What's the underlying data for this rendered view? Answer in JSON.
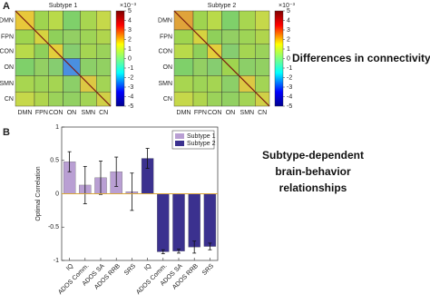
{
  "panel_a": {
    "label": "A",
    "maps": [
      {
        "title": "Subtype 1"
      },
      {
        "title": "Subtype 2"
      }
    ],
    "networks": [
      "DMN",
      "FPN",
      "CON",
      "ON",
      "SMN",
      "CN"
    ],
    "colorbar": {
      "lim": [
        -5,
        5
      ],
      "ticks": [
        5,
        4,
        3,
        2,
        1,
        0,
        -1,
        -2,
        -3,
        -4,
        -5
      ],
      "scale_label": "×10⁻³"
    },
    "caption": "Differences in connectivity"
  },
  "panel_b": {
    "label": "B",
    "caption": [
      "Subtype-dependent",
      "brain-behavior",
      "relationships"
    ]
  },
  "chart_data": {
    "type": "bar",
    "ylabel": "Optimal Correlation",
    "categories": [
      "IQ",
      "ADOS Comm.",
      "ADOS SA",
      "ADOS RRB",
      "SRS",
      "IQ",
      "ADOS Comm.",
      "ADOS SA",
      "ADOS RRB",
      "SRS"
    ],
    "series": [
      {
        "name": "Subtype 1",
        "color": "#b99fd3",
        "values": [
          0.48,
          0.13,
          0.24,
          0.33,
          0.03,
          null,
          null,
          null,
          null,
          null
        ],
        "errors": [
          0.15,
          0.28,
          0.25,
          0.22,
          0.28,
          null,
          null,
          null,
          null,
          null
        ]
      },
      {
        "name": "Subtype 2",
        "color": "#3b318f",
        "values": [
          null,
          null,
          null,
          null,
          null,
          0.53,
          -0.87,
          -0.86,
          -0.8,
          -0.79
        ],
        "errors": [
          null,
          null,
          null,
          null,
          null,
          0.15,
          0.03,
          0.03,
          0.09,
          0.05
        ]
      }
    ],
    "ylim": [
      -1,
      1
    ],
    "yticks": [
      -1,
      -0.5,
      0,
      0.5,
      1
    ],
    "zero_line_color": "#d9a63a",
    "legend": "upper right"
  }
}
